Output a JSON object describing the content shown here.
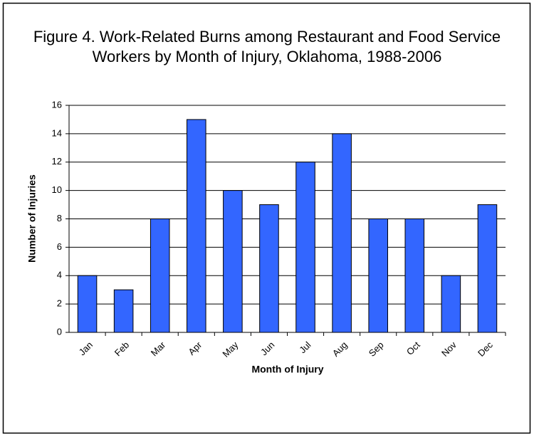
{
  "chart_data": {
    "type": "bar",
    "title": "Figure 4. Work-Related Burns among Restaurant and Food Service Workers by Month of Injury, Oklahoma, 1988-2006",
    "x_label": "Month of Injury",
    "y_label": "Number of Injuries",
    "categories": [
      "Jan",
      "Feb",
      "Mar",
      "Apr",
      "May",
      "Jun",
      "Jul",
      "Aug",
      "Sep",
      "Oct",
      "Nov",
      "Dec"
    ],
    "values": [
      4,
      3,
      8,
      15,
      10,
      9,
      12,
      14,
      8,
      8,
      4,
      9
    ],
    "color": "#3366ff",
    "ylim": [
      0,
      16
    ],
    "yticks": [
      0,
      2,
      4,
      6,
      8,
      10,
      12,
      14,
      16
    ],
    "grid": true
  }
}
